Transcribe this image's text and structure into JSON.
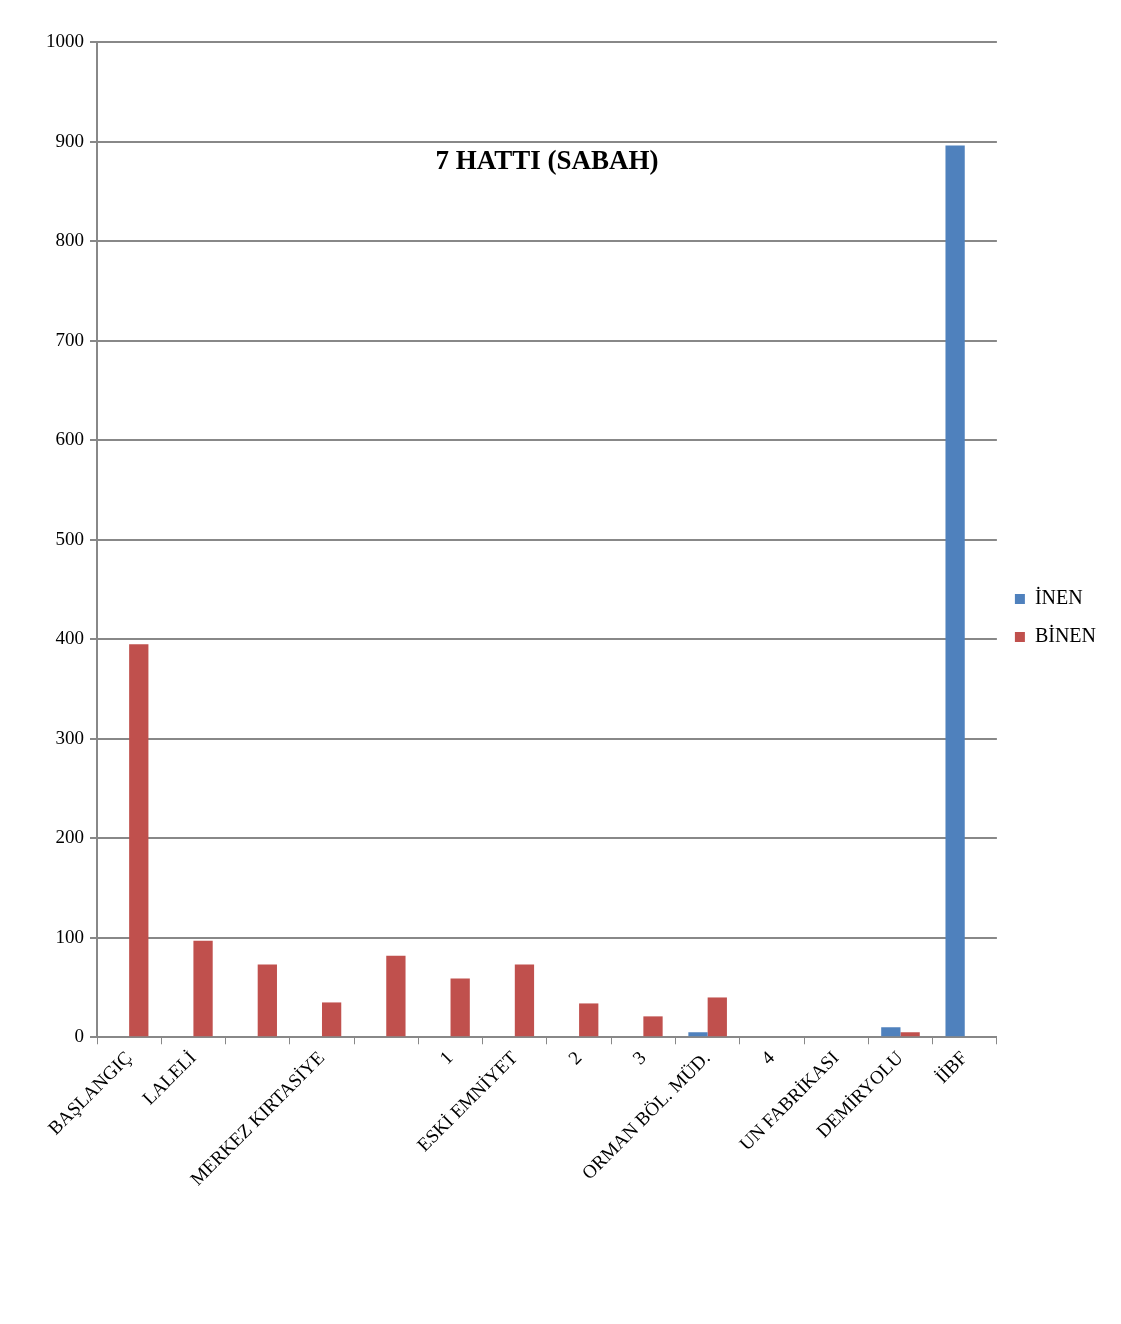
{
  "chart_data": {
    "type": "bar",
    "title": "7 HATTI (SABAH)",
    "categories": [
      "BAŞLANGIÇ",
      "LALELİ",
      null,
      "MERKEZ KIRTASİYE",
      null,
      "1",
      "ESKİ EMNİYET",
      "2",
      "3",
      "ORMAN BÖL. MÜD.",
      "4",
      "UN FABRİKASI",
      "DEMİRYOLU",
      "İİBF"
    ],
    "series": [
      {
        "name": "İNEN",
        "color": "#4f81bd",
        "values": [
          0,
          0,
          0,
          0,
          0,
          0,
          1,
          0,
          0,
          5,
          0,
          0,
          10,
          896
        ]
      },
      {
        "name": "BİNEN",
        "color": "#c0504d",
        "values": [
          395,
          97,
          73,
          35,
          82,
          59,
          73,
          34,
          21,
          40,
          0,
          0,
          5,
          0
        ]
      }
    ],
    "ylim": [
      0,
      1000
    ],
    "yticks": [
      0,
      100,
      200,
      300,
      400,
      500,
      600,
      700,
      800,
      900,
      1000
    ],
    "grid": "y",
    "legend": "right"
  }
}
